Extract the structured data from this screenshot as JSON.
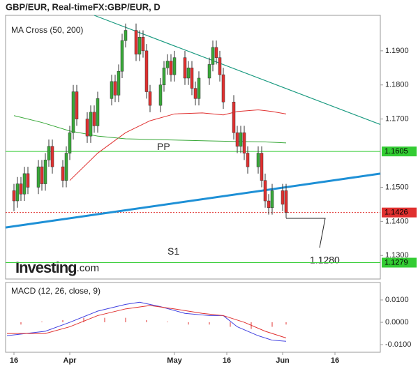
{
  "chart_data": {
    "type": "candlestick",
    "title": "GBP/EUR, Real-timeFX:GBP/EUR, D",
    "indicator_label": "MA Cross (50, 200)",
    "watermark": {
      "brand": "Investing",
      "suffix": ".com"
    },
    "annotation": "1.1280",
    "xlim": [
      13.6,
      121
    ],
    "xticks": [
      {
        "value": 16,
        "label": "16"
      },
      {
        "value": 32,
        "label": "Apr"
      },
      {
        "value": 62,
        "label": "May"
      },
      {
        "value": 77,
        "label": "16"
      },
      {
        "value": 93,
        "label": "Jun"
      },
      {
        "value": 108,
        "label": "16"
      }
    ],
    "ylim": [
      1.1231,
      1.2004
    ],
    "yticks": [
      {
        "value": 1.13,
        "label": "1.1300"
      },
      {
        "value": 1.14,
        "label": "1.1400"
      },
      {
        "value": 1.15,
        "label": "1.1500"
      },
      {
        "value": 1.17,
        "label": "1.1700"
      },
      {
        "value": 1.18,
        "label": "1.1800"
      },
      {
        "value": 1.19,
        "label": "1.1900"
      }
    ],
    "up_color": "#38a838",
    "down_color": "#e0302f",
    "x": [
      16,
      17,
      18,
      19,
      20,
      23,
      24,
      25,
      26,
      27,
      30,
      31,
      32,
      33,
      34,
      37,
      38,
      39,
      40,
      44,
      45,
      46,
      47,
      48,
      51,
      52,
      53,
      54,
      55,
      58,
      59,
      60,
      61,
      62,
      65,
      66,
      67,
      68,
      69,
      72,
      73,
      74,
      75,
      76,
      79,
      80,
      81,
      82,
      83,
      86,
      87,
      88,
      89,
      90,
      93,
      94
    ],
    "open": [
      1.149,
      1.146,
      1.151,
      1.148,
      1.154,
      1.15,
      1.156,
      1.151,
      1.158,
      1.162,
      1.156,
      1.152,
      1.16,
      1.166,
      1.178,
      1.17,
      1.165,
      1.172,
      1.168,
      1.176,
      1.181,
      1.177,
      1.184,
      1.193,
      1.196,
      1.189,
      1.194,
      1.19,
      1.178,
      1.174,
      1.18,
      1.185,
      1.187,
      1.183,
      1.188,
      1.182,
      1.185,
      1.179,
      1.176,
      1.182,
      1.186,
      1.191,
      1.188,
      1.183,
      1.175,
      1.166,
      1.162,
      1.166,
      1.16,
      1.156,
      1.16,
      1.152,
      1.146,
      1.144,
      1.149,
      1.149
    ],
    "high": [
      1.151,
      1.153,
      1.153,
      1.156,
      1.156,
      1.158,
      1.158,
      1.16,
      1.164,
      1.164,
      1.158,
      1.162,
      1.168,
      1.18,
      1.18,
      1.172,
      1.174,
      1.174,
      1.178,
      1.183,
      1.183,
      1.186,
      1.195,
      1.198,
      1.198,
      1.196,
      1.196,
      1.192,
      1.18,
      1.182,
      1.187,
      1.189,
      1.189,
      1.19,
      1.19,
      1.187,
      1.187,
      1.181,
      1.184,
      1.188,
      1.193,
      1.193,
      1.19,
      1.185,
      1.177,
      1.168,
      1.168,
      1.168,
      1.162,
      1.162,
      1.162,
      1.154,
      1.148,
      1.151,
      1.151,
      1.151
    ],
    "low": [
      1.143,
      1.144,
      1.146,
      1.146,
      1.148,
      1.148,
      1.149,
      1.149,
      1.156,
      1.154,
      1.15,
      1.15,
      1.158,
      1.164,
      1.168,
      1.163,
      1.163,
      1.166,
      1.166,
      1.174,
      1.175,
      1.175,
      1.182,
      1.191,
      1.187,
      1.187,
      1.188,
      1.176,
      1.172,
      1.172,
      1.178,
      1.183,
      1.181,
      1.181,
      1.18,
      1.18,
      1.177,
      1.174,
      1.174,
      1.18,
      1.184,
      1.186,
      1.181,
      1.173,
      1.164,
      1.16,
      1.16,
      1.158,
      1.154,
      1.154,
      1.15,
      1.144,
      1.142,
      1.142,
      1.143,
      1.141
    ],
    "close": [
      1.146,
      1.151,
      1.148,
      1.154,
      1.15,
      1.156,
      1.151,
      1.158,
      1.162,
      1.156,
      1.152,
      1.16,
      1.166,
      1.178,
      1.17,
      1.165,
      1.172,
      1.168,
      1.176,
      1.181,
      1.177,
      1.184,
      1.193,
      1.196,
      1.189,
      1.194,
      1.19,
      1.178,
      1.174,
      1.18,
      1.185,
      1.187,
      1.183,
      1.188,
      1.182,
      1.185,
      1.179,
      1.176,
      1.182,
      1.186,
      1.191,
      1.188,
      1.183,
      1.175,
      1.166,
      1.162,
      1.166,
      1.16,
      1.156,
      1.16,
      1.152,
      1.146,
      1.144,
      1.149,
      1.145,
      1.1426
    ],
    "moving_averages": [
      {
        "color": "#e0302f",
        "x": [
          32,
          40,
          48,
          55,
          62,
          70,
          76,
          80,
          86,
          90,
          94
        ],
        "values": [
          1.152,
          1.16,
          1.166,
          1.1695,
          1.1715,
          1.1718,
          1.1712,
          1.1722,
          1.1727,
          1.1722,
          1.1715
        ]
      },
      {
        "color": "#38a838",
        "x": [
          16,
          24,
          32,
          40,
          48,
          56,
          64,
          72,
          80,
          88,
          94
        ],
        "values": [
          1.171,
          1.169,
          1.1665,
          1.165,
          1.1642,
          1.164,
          1.1638,
          1.1636,
          1.1634,
          1.1633,
          1.163
        ]
      }
    ],
    "trendlines": [
      {
        "color": "#1a9a80",
        "x": [
          39,
          121
        ],
        "values": [
          1.2004,
          1.1684
        ]
      },
      {
        "color": "#1e90d6",
        "x": [
          13.6,
          121
        ],
        "values": [
          1.1382,
          1.154
        ]
      }
    ],
    "levels": [
      {
        "value": 1.1605,
        "label": "1.1605",
        "name": "PP",
        "color": "#33cc33"
      },
      {
        "value": 1.1279,
        "label": "1.1279",
        "name": "S1",
        "color": "#33cc33"
      },
      {
        "value": 1.1426,
        "label": "1.1426",
        "color": "#e0302f",
        "dashed": true
      }
    ],
    "macd": {
      "label": "MACD (12, 26, close, 9)",
      "ylim": [
        -0.0134,
        0.0178
      ],
      "yticks": [
        {
          "value": 0.01,
          "label": "0.0100"
        },
        {
          "value": 0,
          "label": "0.0000"
        },
        {
          "value": -0.01,
          "label": "-0.0100"
        }
      ],
      "series": [
        {
          "color": "#4040e0",
          "x": [
            14,
            25,
            32,
            40,
            48,
            52,
            58,
            65,
            72,
            76,
            80,
            86,
            90,
            94
          ],
          "values": [
            -0.006,
            -0.004,
            0.0,
            0.005,
            0.008,
            0.009,
            0.007,
            0.004,
            0.003,
            0.003,
            -0.002,
            -0.006,
            -0.008,
            -0.0085
          ]
        },
        {
          "color": "#e0302f",
          "x": [
            14,
            25,
            32,
            40,
            48,
            55,
            62,
            70,
            76,
            82,
            88,
            94
          ],
          "values": [
            -0.005,
            -0.005,
            -0.002,
            0.003,
            0.006,
            0.0075,
            0.006,
            0.004,
            0.003,
            0.0,
            -0.004,
            -0.007
          ]
        }
      ],
      "histogram": {
        "color": "#e0302f",
        "x": [
          18,
          24,
          30,
          36,
          42,
          48,
          54,
          60,
          66,
          72,
          78,
          84,
          90,
          94
        ],
        "values": [
          -0.001,
          0.0,
          0.001,
          0.002,
          0.002,
          0.002,
          0.001,
          0.0,
          -0.001,
          -0.001,
          -0.002,
          -0.003,
          -0.002,
          -0.001
        ]
      }
    }
  }
}
